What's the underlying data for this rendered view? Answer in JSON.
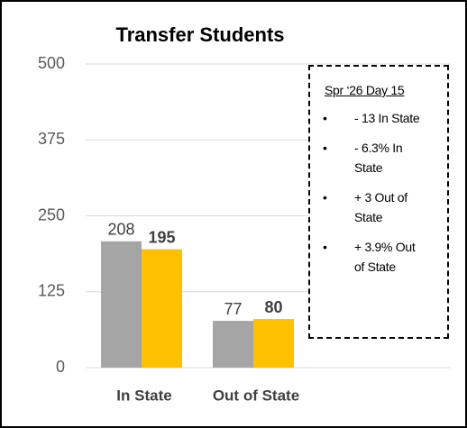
{
  "chart_data": {
    "type": "bar",
    "title": "Transfer Students",
    "categories": [
      "In State",
      "Out of State"
    ],
    "series": [
      {
        "color": "#a5a5a5",
        "values": [
          208,
          77
        ]
      },
      {
        "color": "#ffc000",
        "values": [
          195,
          80
        ]
      }
    ],
    "ylim": [
      0,
      500
    ],
    "yticks": [
      0,
      125,
      250,
      375,
      500
    ],
    "grid": true,
    "annotation": {
      "title": "Spr ‘26 Day 15",
      "items": [
        "- 13 In State",
        "- 6.3% In State",
        "+ 3 Out of State",
        "+ 3.9% Out of State"
      ]
    }
  }
}
